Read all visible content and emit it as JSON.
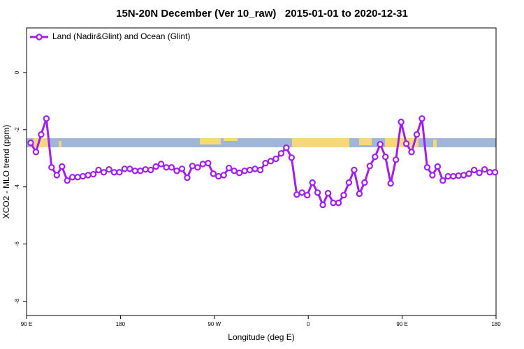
{
  "chart_data": {
    "type": "line",
    "title": "15N-20N December (Ver 10_raw)   2015-01-01 to 2020-12-31",
    "x_label": "Longitude (deg E)",
    "y_label": "XCO2 - MLO trend (ppm)",
    "x": [
      94,
      99,
      104,
      109,
      114,
      119,
      124,
      129,
      134,
      139,
      144,
      149,
      154,
      159,
      164,
      169,
      174,
      179,
      184,
      189,
      194,
      199,
      204,
      209,
      214,
      219,
      224,
      229,
      234,
      239,
      244,
      249,
      254,
      259,
      264,
      269,
      274,
      279,
      284,
      289,
      294,
      299,
      304,
      309,
      314,
      319,
      324,
      329,
      334,
      339,
      344,
      349,
      354,
      359,
      364,
      369,
      374,
      379,
      384,
      389,
      394,
      399,
      404,
      409,
      414,
      419,
      424,
      429,
      434,
      439,
      444,
      449,
      454,
      459,
      464,
      469,
      474,
      479,
      484,
      489,
      494,
      499,
      504,
      509,
      514,
      519,
      524,
      529,
      534,
      539
    ],
    "series": [
      {
        "name": "Land (Nadir&Glint) and Ocean (Glint)",
        "color": "#a020f0",
        "values": [
          -2.46,
          -2.78,
          -2.17,
          -1.61,
          -3.32,
          -3.59,
          -3.29,
          -3.78,
          -3.66,
          -3.66,
          -3.63,
          -3.59,
          -3.56,
          -3.41,
          -3.49,
          -3.39,
          -3.49,
          -3.49,
          -3.37,
          -3.37,
          -3.44,
          -3.44,
          -3.39,
          -3.41,
          -3.29,
          -3.2,
          -3.32,
          -3.32,
          -3.44,
          -3.37,
          -3.68,
          -3.27,
          -3.32,
          -3.2,
          -3.17,
          -3.54,
          -3.63,
          -3.59,
          -3.34,
          -3.44,
          -3.51,
          -3.44,
          -3.41,
          -3.37,
          -3.41,
          -3.17,
          -3.1,
          -3.02,
          -2.83,
          -2.63,
          -2.98,
          -4.27,
          -4.2,
          -4.29,
          -3.85,
          -4.2,
          -4.63,
          -4.22,
          -4.56,
          -4.56,
          -4.29,
          -3.85,
          -3.41,
          -4.24,
          -3.85,
          -3.27,
          -2.95,
          -2.51,
          -2.95,
          -3.88,
          -3.05,
          -1.73,
          -2.49,
          -2.78,
          -2.17,
          -1.61,
          -3.32,
          -3.59,
          -3.29,
          -3.78,
          -3.63,
          -3.63,
          -3.61,
          -3.59,
          -3.54,
          -3.41,
          -3.51,
          -3.39,
          -3.49,
          -3.49
        ]
      }
    ],
    "xlim": [
      90,
      540
    ],
    "ylim": [
      -8.5,
      1.56
    ],
    "xticks": [
      {
        "value": 90,
        "label": "90 E"
      },
      180,
      {
        "value": 270,
        "label": "90 W"
      },
      {
        "value": 360,
        "label": "0"
      },
      {
        "value": 450,
        "label": "90 E"
      },
      {
        "value": 540,
        "label": "180"
      }
    ],
    "yticks": [
      0,
      -2,
      -4,
      -6,
      -8
    ],
    "legend": "top-left"
  }
}
